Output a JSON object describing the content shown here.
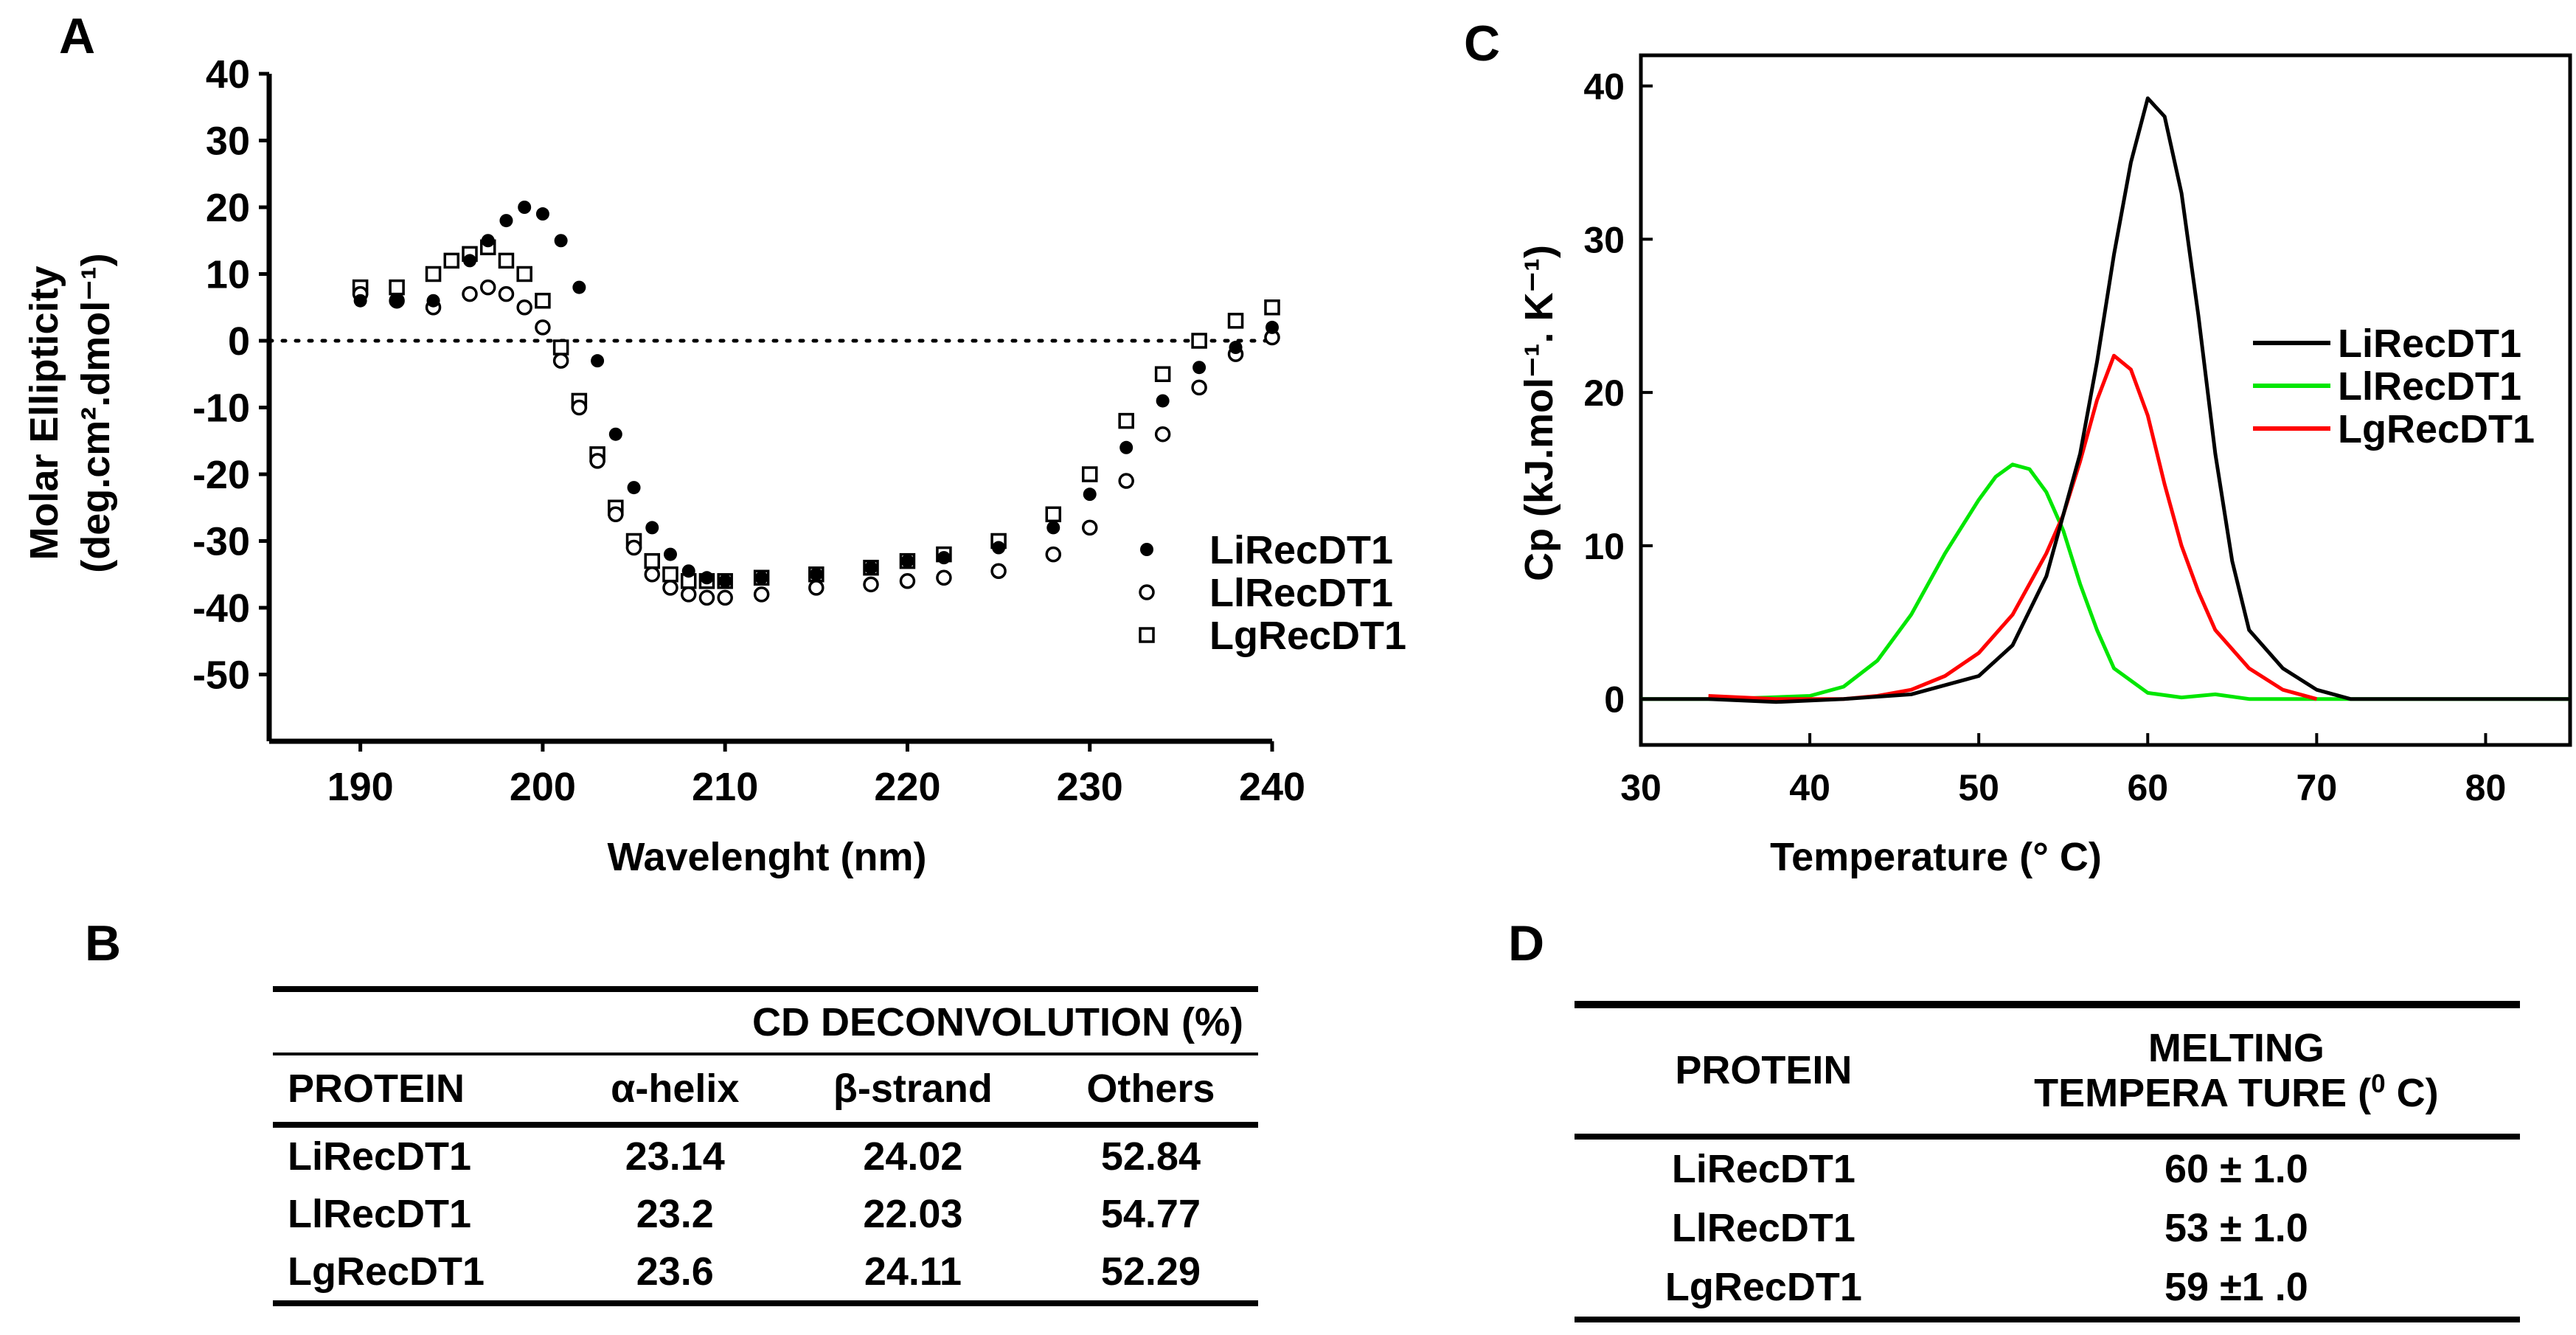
{
  "panels": {
    "a": "A",
    "b": "B",
    "c": "C",
    "d": "D"
  },
  "chart_data": [
    {
      "id": "A",
      "type": "scatter",
      "xlabel": "Wavelenght (nm)",
      "ylabel_line1": "Molar Ellipticity",
      "ylabel_line2": "(deg.cm².dmol⁻¹)",
      "xlim": [
        185,
        240
      ],
      "ylim": [
        -60,
        40
      ],
      "xticks": [
        190,
        200,
        210,
        220,
        230,
        240
      ],
      "yticks": [
        40,
        30,
        20,
        10,
        0,
        -10,
        -20,
        -30,
        -40,
        -50
      ],
      "zero_line": "dotted",
      "legend_position": "right",
      "series": [
        {
          "name": "LiRecDT1",
          "marker": "filled-circle",
          "x": [
            190,
            192,
            194,
            196,
            197,
            198,
            199,
            200,
            201,
            202,
            203,
            204,
            205,
            206,
            207,
            208,
            209,
            210,
            212,
            215,
            218,
            220,
            222,
            225,
            228,
            230,
            232,
            234,
            236,
            238,
            240
          ],
          "y": [
            6,
            6,
            6,
            12,
            15,
            18,
            20,
            19,
            15,
            8,
            -3,
            -14,
            -22,
            -28,
            -32,
            -34.5,
            -35.5,
            -36,
            -35.5,
            -35,
            -34,
            -33,
            -32.5,
            -31,
            -28,
            -23,
            -16,
            -9,
            -4,
            -1,
            2
          ]
        },
        {
          "name": "LlRecDT1",
          "marker": "open-circle",
          "x": [
            190,
            192,
            194,
            196,
            197,
            198,
            199,
            200,
            201,
            202,
            203,
            204,
            205,
            206,
            207,
            208,
            209,
            210,
            212,
            215,
            218,
            220,
            222,
            225,
            228,
            230,
            232,
            234,
            236,
            238,
            240
          ],
          "y": [
            7,
            6,
            5,
            7,
            8,
            7,
            5,
            2,
            -3,
            -10,
            -18,
            -26,
            -31,
            -35,
            -37,
            -38,
            -38.5,
            -38.5,
            -38,
            -37,
            -36.5,
            -36,
            -35.5,
            -34.5,
            -32,
            -28,
            -21,
            -14,
            -7,
            -2,
            0.5
          ]
        },
        {
          "name": "LgRecDT1",
          "marker": "open-square",
          "x": [
            190,
            192,
            194,
            195,
            196,
            197,
            198,
            199,
            200,
            201,
            202,
            203,
            204,
            205,
            206,
            207,
            208,
            209,
            210,
            212,
            215,
            218,
            220,
            222,
            225,
            228,
            230,
            232,
            234,
            236,
            238,
            240
          ],
          "y": [
            8,
            8,
            10,
            12,
            13,
            14,
            12,
            10,
            6,
            -1,
            -9,
            -17,
            -25,
            -30,
            -33,
            -35,
            -36,
            -36,
            -36,
            -35.5,
            -35,
            -34,
            -33,
            -32,
            -30,
            -26,
            -20,
            -12,
            -5,
            0,
            3,
            5
          ]
        }
      ],
      "legend": [
        "LiRecDT1",
        "LlRecDT1",
        "LgRecDT1"
      ]
    },
    {
      "id": "C",
      "type": "line",
      "xlabel": "Temperature (° C)",
      "ylabel": "Cp (kJ.mol⁻¹. K⁻¹)",
      "xlim": [
        30,
        85
      ],
      "ylim": [
        -3,
        42
      ],
      "xticks": [
        30,
        40,
        50,
        60,
        70,
        80
      ],
      "yticks": [
        0,
        10,
        20,
        30,
        40
      ],
      "legend_position": "right",
      "series": [
        {
          "name": "LiRecDT1",
          "color": "#000000",
          "x": [
            30,
            34,
            38,
            42,
            46,
            50,
            52,
            54,
            56,
            57,
            58,
            59,
            60,
            61,
            62,
            63,
            64,
            65,
            66,
            68,
            70,
            72,
            75,
            80,
            85
          ],
          "y": [
            0,
            0,
            -0.2,
            0,
            0.3,
            1.5,
            3.5,
            8,
            16,
            22,
            29,
            35,
            39.2,
            38,
            33,
            25,
            16,
            9,
            4.5,
            2,
            0.6,
            0,
            0,
            0,
            0
          ]
        },
        {
          "name": "LlRecDT1",
          "color": "#00e600",
          "x": [
            30,
            35,
            40,
            42,
            44,
            46,
            48,
            50,
            51,
            52,
            53,
            54,
            55,
            56,
            57,
            58,
            60,
            62,
            64,
            66,
            70,
            75,
            80,
            85
          ],
          "y": [
            0,
            0,
            0.2,
            0.8,
            2.5,
            5.5,
            9.5,
            13,
            14.5,
            15.3,
            15,
            13.5,
            11,
            7.5,
            4.5,
            2,
            0.4,
            0.1,
            0.3,
            0,
            0,
            0,
            0,
            0
          ]
        },
        {
          "name": "LgRecDT1",
          "color": "#ff0000",
          "x": [
            34,
            38,
            42,
            44,
            46,
            48,
            50,
            52,
            54,
            55,
            56,
            57,
            58,
            59,
            60,
            61,
            62,
            63,
            64,
            66,
            68,
            70
          ],
          "y": [
            0.2,
            0,
            0,
            0.2,
            0.6,
            1.5,
            3,
            5.5,
            9.5,
            12,
            15.5,
            19.5,
            22.4,
            21.5,
            18.5,
            14,
            10,
            7,
            4.5,
            2,
            0.6,
            0
          ]
        }
      ],
      "legend": [
        "LiRecDT1",
        "LlRecDT1",
        "LgRecDT1"
      ]
    }
  ],
  "table_b": {
    "title": "CD DECONVOLUTION (%)",
    "headers": [
      "PROTEIN",
      "α-helix",
      "β-strand",
      "Others"
    ],
    "rows": [
      [
        "LiRecDT1",
        "23.14",
        "24.02",
        "52.84"
      ],
      [
        "LlRecDT1",
        "23.2",
        "22.03",
        "54.77"
      ],
      [
        "LgRecDT1",
        "23.6",
        "24.11",
        "52.29"
      ]
    ]
  },
  "table_d": {
    "headers": {
      "protein": "PROTEIN",
      "melt_line1": "MELTING",
      "melt_line2": "TEMPERA TURE (",
      "melt_sup": "0",
      "melt_end": " C)"
    },
    "rows": [
      [
        "LiRecDT1",
        "60 ± 1.0"
      ],
      [
        "LlRecDT1",
        "53 ± 1.0"
      ],
      [
        "LgRecDT1",
        "59 ±1 .0"
      ]
    ]
  },
  "colors": {
    "black": "#000000",
    "green": "#00e600",
    "red": "#ff0000"
  }
}
